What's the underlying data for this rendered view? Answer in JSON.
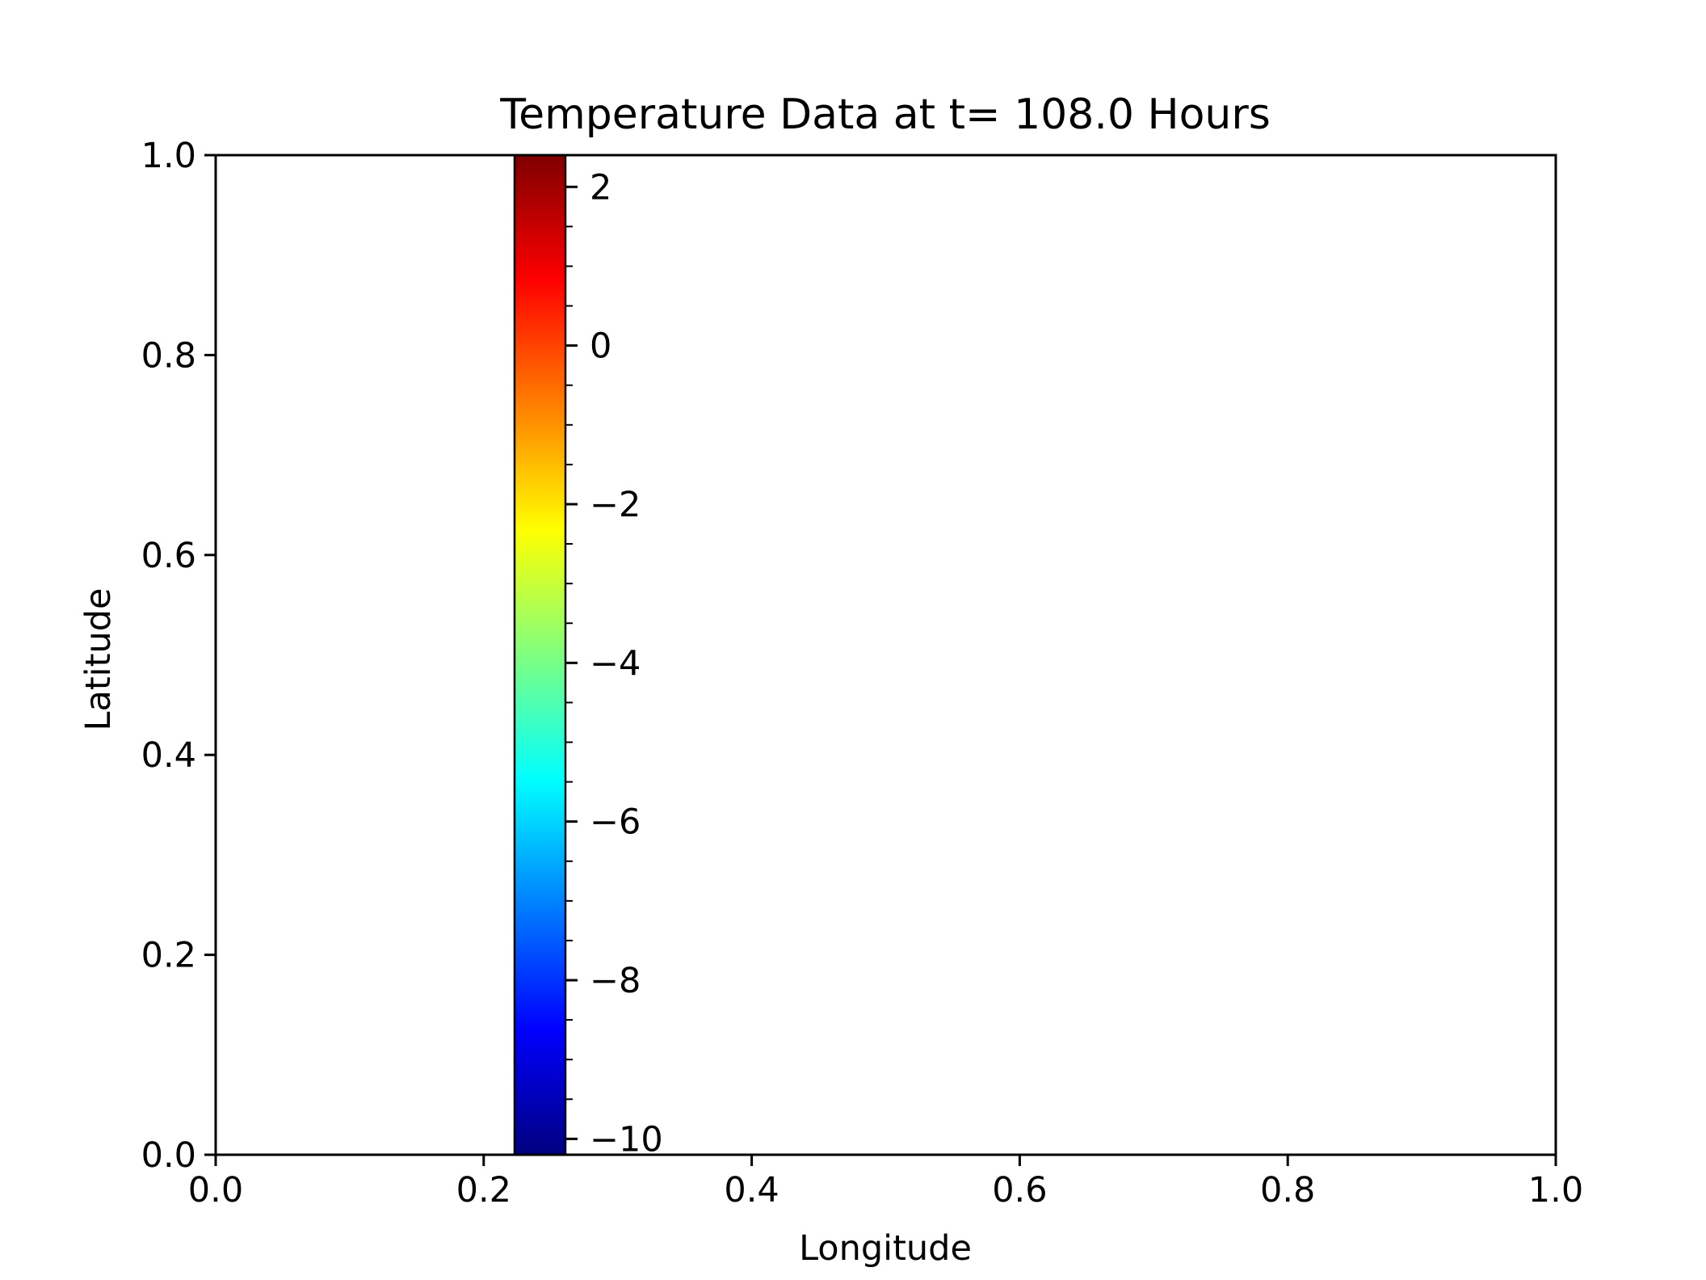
{
  "chart_data": {
    "type": "heatmap",
    "title": "Temperature Data at t= 108.0 Hours",
    "xlabel": "Longitude",
    "ylabel": "Latitude",
    "xlim": [
      0.0,
      1.0
    ],
    "ylim": [
      0.0,
      1.0
    ],
    "xticks": [
      "0.0",
      "0.2",
      "0.4",
      "0.6",
      "0.8",
      "1.0"
    ],
    "yticks": [
      "0.0",
      "0.2",
      "0.4",
      "0.6",
      "0.8",
      "1.0"
    ],
    "grid": false,
    "data": [],
    "colorbar": {
      "colormap": "jet",
      "range": [
        -10.2,
        2.4
      ],
      "ticks": [
        2,
        0,
        -2,
        -4,
        -6,
        -8,
        -10
      ],
      "tick_labels": [
        "2",
        "0",
        "−2",
        "−4",
        "−6",
        "−8",
        "−10"
      ],
      "placement": "inside axes, left of center",
      "colors": [
        "#00007f",
        "#0000ff",
        "#007fff",
        "#00ffff",
        "#7fff7f",
        "#ffff00",
        "#ff7f00",
        "#ff0000",
        "#7f0000"
      ]
    }
  }
}
